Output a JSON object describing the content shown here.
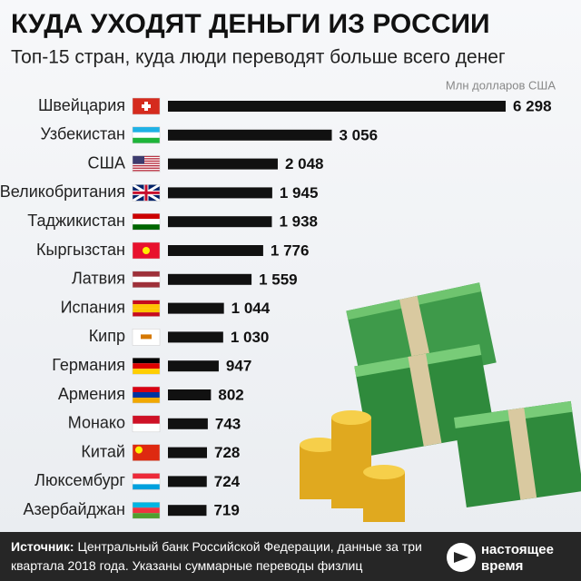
{
  "chart_data": {
    "type": "bar",
    "orientation": "horizontal",
    "title": "КУДА УХОДЯТ ДЕНЬГИ ИЗ РОССИИ",
    "subtitle": "Топ-15 стран, куда люди переводят больше всего денег",
    "unit_label": "Млн долларов США",
    "categories": [
      "Швейцария",
      "Узбекистан",
      "США",
      "Великобритания",
      "Таджикистан",
      "Кыргызстан",
      "Латвия",
      "Испания",
      "Кипр",
      "Германия",
      "Армения",
      "Монако",
      "Китай",
      "Люксембург",
      "Азербайджан"
    ],
    "values": [
      6298,
      3056,
      2048,
      1945,
      1938,
      1776,
      1559,
      1044,
      1030,
      947,
      802,
      743,
      728,
      724,
      719
    ],
    "value_labels": [
      "6 298",
      "3 056",
      "2 048",
      "1 945",
      "1 938",
      "1 776",
      "1 559",
      "1 044",
      "1 030",
      "947",
      "802",
      "743",
      "728",
      "724",
      "719"
    ],
    "color": "#111111",
    "source_label": "Источник:",
    "source_text": "Центральный банк Российской Федерации, данные за три квартала 2018 года. Указаны суммарные переводы физлиц",
    "logo_line1": "настоящее",
    "logo_line2": "время"
  }
}
